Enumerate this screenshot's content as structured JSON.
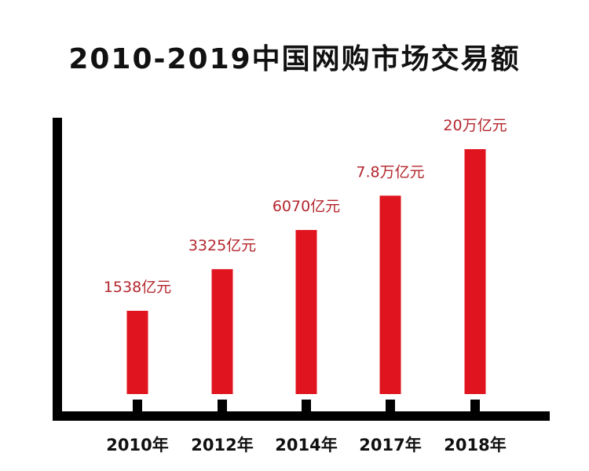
{
  "colors": {
    "bar": "#e0141e",
    "data_label": "#b3262d",
    "axis": "#000000",
    "text": "#111111"
  },
  "chart_data": {
    "type": "bar",
    "title": "2010-2019中国网购市场交易额",
    "xlabel": "",
    "ylabel": "",
    "categories": [
      "2010年",
      "2012年",
      "2014年",
      "2017年",
      "2018年"
    ],
    "data_labels": [
      "1538亿元",
      "3325亿元",
      "6070亿元",
      "7.8万亿元",
      "20万亿元"
    ],
    "relative_heights": [
      0.34,
      0.51,
      0.67,
      0.81,
      1.0
    ],
    "grid": false,
    "legend": "none"
  }
}
